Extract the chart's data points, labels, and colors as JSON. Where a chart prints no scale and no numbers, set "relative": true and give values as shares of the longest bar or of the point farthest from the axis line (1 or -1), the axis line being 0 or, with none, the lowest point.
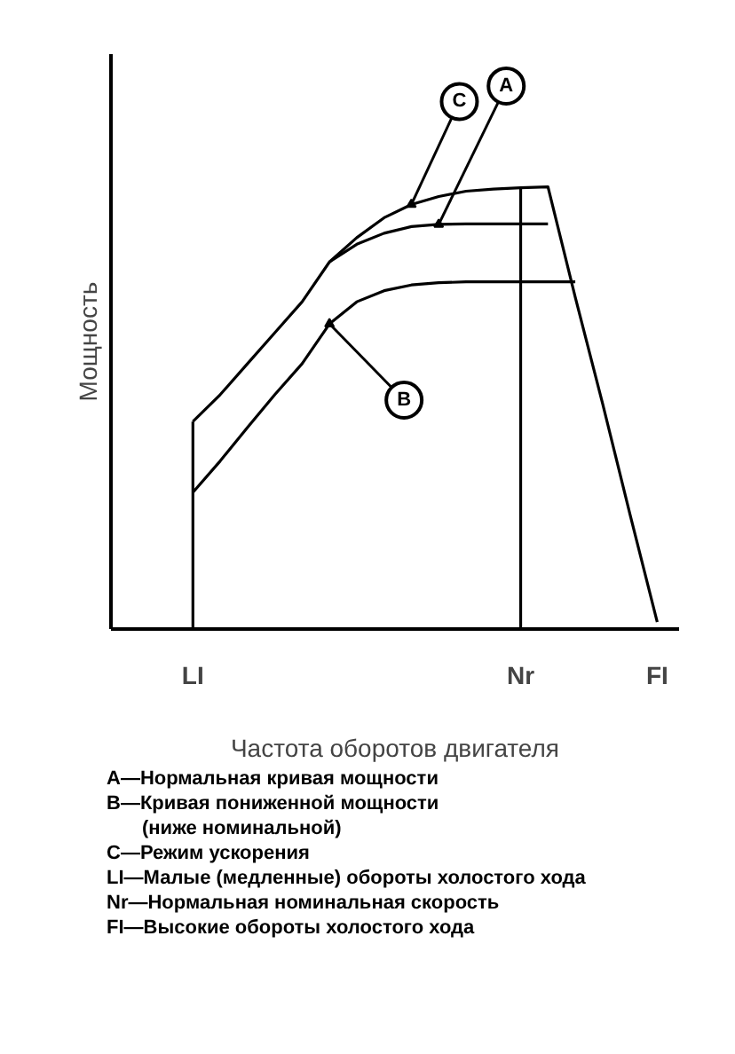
{
  "chart_data": {
    "type": "line",
    "relative": true,
    "xlabel": "Частота оборотов двигателя",
    "ylabel": "Мощность",
    "categories": [
      null,
      null,
      null,
      "LI",
      null,
      null,
      null,
      null,
      null,
      null,
      null,
      null,
      null,
      null,
      null,
      "Nr",
      null,
      null,
      null,
      null,
      "FI"
    ],
    "tick_labels": "x",
    "grid": false,
    "line_style": "solid",
    "series": [
      {
        "name": "C",
        "color": "#000000",
        "values": [
          null,
          null,
          null,
          0.469,
          0.53,
          0.6,
          0.67,
          0.74,
          0.83,
          0.885,
          0.93,
          0.96,
          0.978,
          0.99,
          0.995,
          0.998,
          1.0,
          0.75,
          0.51,
          0.26,
          0.016
        ]
      },
      {
        "name": "A",
        "color": "#000000",
        "values": [
          null,
          null,
          null,
          null,
          null,
          null,
          null,
          null,
          0.83,
          0.87,
          0.895,
          0.91,
          0.915,
          0.916,
          0.916,
          0.916,
          0.916,
          null,
          null,
          null,
          null
        ]
      },
      {
        "name": "B",
        "color": "#000000",
        "values": [
          null,
          null,
          null,
          0.309,
          0.38,
          0.456,
          0.53,
          0.6,
          0.69,
          0.74,
          0.765,
          0.778,
          0.783,
          0.785,
          0.785,
          0.785,
          0.785,
          0.785,
          null,
          null,
          null
        ]
      }
    ],
    "ref_lines": [
      {
        "axis": "x",
        "value": "LI"
      },
      {
        "axis": "x",
        "value": "Nr"
      }
    ],
    "annotations": [
      "A—Нормальная кривая мощности",
      "B—Кривая пониженной мощности\n(ниже номинальной)",
      "C—Режим ускорения",
      "LI—Малые (медленные) обороты холостого хода",
      "Nr—Нормальная номинальная скорость",
      "FI—Высокие обороты холостого хода"
    ]
  }
}
